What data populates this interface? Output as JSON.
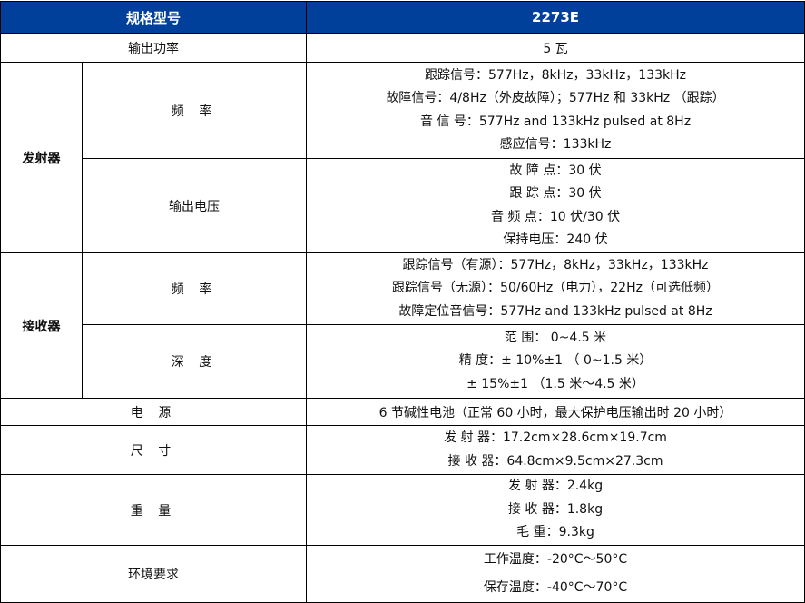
{
  "header": {
    "spec_label": "规格型号",
    "model": "2273E"
  },
  "output_power": {
    "label": "输出功率",
    "value": "5 瓦"
  },
  "transmitter": {
    "label": "发射器",
    "frequency": {
      "label": "频 率",
      "lines": [
        "跟踪信号：577Hz，8kHz，33kHz，133kHz",
        "故障信号：4/8Hz（外皮故障）；577Hz 和 33kHz （跟踪）",
        "音 信 号：577Hz and 133kHz pulsed at 8Hz",
        "感应信号：133kHz"
      ]
    },
    "voltage": {
      "label": "输出电压",
      "lines": [
        "故 障 点：30 伏",
        "跟 踪 点：30 伏",
        "音 频 点：10 伏/30 伏",
        "保持电压：240 伏"
      ]
    }
  },
  "receiver": {
    "label": "接收器",
    "frequency": {
      "label": "频 率",
      "lines": [
        "跟踪信号（有源）：577Hz，8kHz，33kHz，133kHz",
        "跟踪信号（无源）：50/60Hz（电力），22Hz（可选低频）",
        "故障定位音信号：577Hz and 133kHz pulsed at 8Hz"
      ]
    },
    "depth": {
      "label": "深 度",
      "lines": [
        "范 围： 0~4.5 米",
        "精 度：± 10%±1 （ 0~1.5 米）",
        "± 15%±1 （1.5 米～4.5 米）"
      ]
    }
  },
  "power": {
    "label": "电 源",
    "value": "6 节碱性电池（正常 60 小时，最大保护电压输出时 20 小时）"
  },
  "size": {
    "label": "尺 寸",
    "lines": [
      "发 射 器：17.2cm×28.6cm×19.7cm",
      "接 收 器：64.8cm×9.5cm×27.3cm"
    ]
  },
  "weight": {
    "label": "重 量",
    "lines": [
      "发 射 器：2.4kg",
      "接 收 器：1.8kg",
      "毛 重：9.3kg"
    ]
  },
  "environment": {
    "label": "环境要求",
    "lines": [
      "工作温度：-20°C～50°C",
      "保存温度：-40°C～70°C"
    ]
  }
}
